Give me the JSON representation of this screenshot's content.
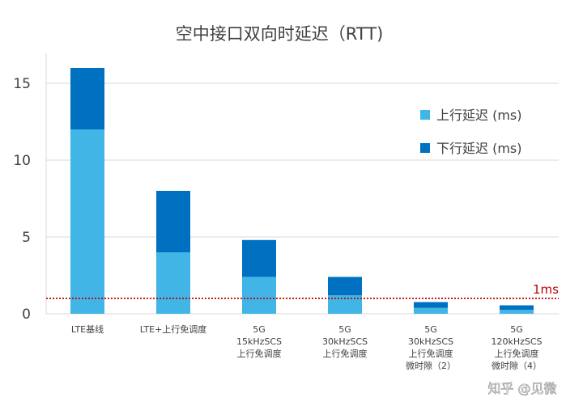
{
  "chart_data": {
    "type": "bar",
    "stacked": true,
    "title": "空中接口双向时延迟（RTT)",
    "categories": [
      [
        "LTE基线"
      ],
      [
        "LTE+上行免调度"
      ],
      [
        "5G",
        "15kHzSCS",
        "上行免调度"
      ],
      [
        "5G",
        "30kHzSCS",
        "上行免调度"
      ],
      [
        "5G",
        "30kHzSCS",
        "上行免调度",
        "微时隙（2）"
      ],
      [
        "5G",
        "120kHzSCS",
        "上行免调度",
        "微时隙（4）"
      ]
    ],
    "series": [
      {
        "name": "上行延迟 (ms)",
        "color": "#41b6e6",
        "values": [
          12,
          4,
          2.4,
          1.2,
          0.38,
          0.25
        ]
      },
      {
        "name": "下行延迟 (ms)",
        "color": "#0070c0",
        "values": [
          4,
          4,
          2.4,
          1.2,
          0.38,
          0.3
        ]
      }
    ],
    "ylim": [
      0,
      17
    ],
    "yticks": [
      "0",
      "5",
      "10",
      "15"
    ],
    "ytick_values": [
      0,
      5,
      10,
      15
    ],
    "gridlines": true,
    "legend": "top-right",
    "reference_line": {
      "value": 1,
      "label": "1ms",
      "color": "#c00000",
      "style": "dotted"
    }
  },
  "watermark": "知乎 @见微"
}
